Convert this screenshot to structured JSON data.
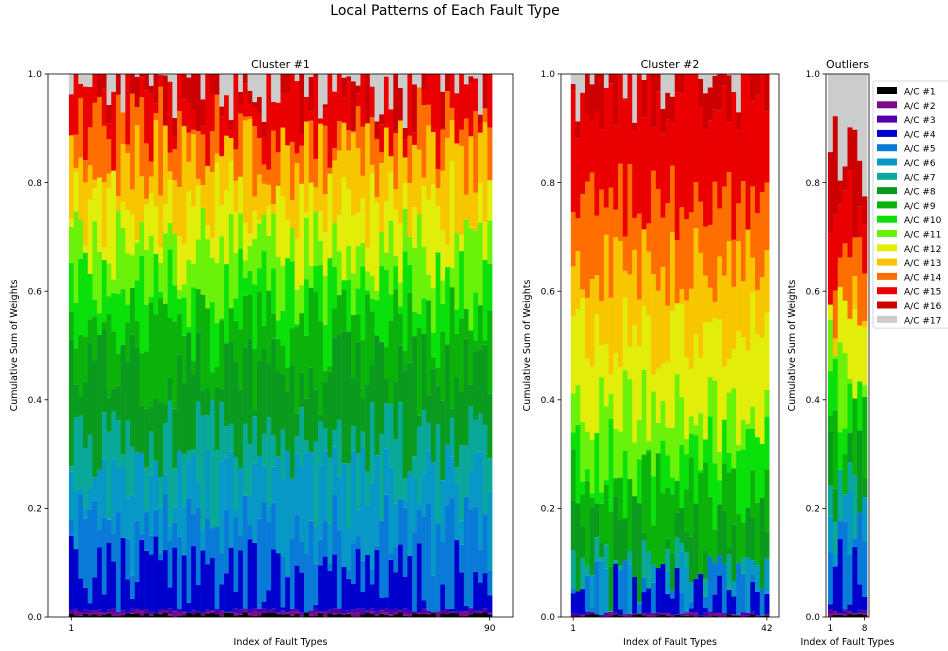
{
  "suptitle": "Local Patterns of Each Fault Type",
  "colors": [
    "#000000",
    "#7a0a87",
    "#5000aa",
    "#0000cc",
    "#0a7ad8",
    "#0898c8",
    "#09a899",
    "#0a9a1e",
    "#0ab20a",
    "#0ae00a",
    "#6af20a",
    "#e2ee0a",
    "#f8c600",
    "#ff6e00",
    "#ea0000",
    "#cc0000",
    "#cccccc"
  ],
  "legend": {
    "placement": "right",
    "entries": [
      "A/C #1",
      "A/C #2",
      "A/C #3",
      "A/C #4",
      "A/C #5",
      "A/C #6",
      "A/C #7",
      "A/C #8",
      "A/C #9",
      "A/C #10",
      "A/C #11",
      "A/C #12",
      "A/C #13",
      "A/C #14",
      "A/C #15",
      "A/C #16",
      "A/C #17"
    ]
  },
  "chart_data": [
    {
      "type": "bar",
      "stacked": true,
      "title": "Cluster #1",
      "xlabel": "Index of Fault Types",
      "ylabel": "Cumulative Sum of Weights",
      "n": 90,
      "xticks": [
        "1",
        "90"
      ],
      "ylim": [
        0,
        1
      ],
      "yticks": [
        "0.0",
        "0.2",
        "0.4",
        "0.6",
        "0.8",
        "1.0"
      ],
      "mean_cumulative_boundaries": [
        0.005,
        0.008,
        0.012,
        0.07,
        0.15,
        0.24,
        0.33,
        0.45,
        0.53,
        0.6,
        0.68,
        0.76,
        0.84,
        0.9,
        0.95,
        0.97,
        1.0
      ]
    },
    {
      "type": "bar",
      "stacked": true,
      "title": "Cluster #2",
      "xlabel": "Index of Fault Types",
      "ylabel": "Cumulative Sum of Weights",
      "n": 42,
      "xticks": [
        "1",
        "42"
      ],
      "ylim": [
        0,
        1
      ],
      "yticks": [
        "0.0",
        "0.2",
        "0.4",
        "0.6",
        "0.8",
        "1.0"
      ],
      "mean_cumulative_boundaries": [
        0.002,
        0.004,
        0.006,
        0.02,
        0.035,
        0.05,
        0.07,
        0.15,
        0.23,
        0.29,
        0.38,
        0.52,
        0.64,
        0.76,
        0.96,
        0.99,
        1.0
      ]
    },
    {
      "type": "bar",
      "stacked": true,
      "title": "Outliers",
      "xlabel": "Index of Fault Types",
      "ylabel": "Cumulative Sum of Weights",
      "n": 8,
      "xticks": [
        "1",
        "8"
      ],
      "ylim": [
        0,
        1
      ],
      "yticks": [
        "0.0",
        "0.2",
        "0.4",
        "0.6",
        "0.8",
        "1.0"
      ],
      "mean_cumulative_boundaries": [
        0.004,
        0.007,
        0.01,
        0.07,
        0.12,
        0.16,
        0.22,
        0.27,
        0.34,
        0.41,
        0.47,
        0.53,
        0.58,
        0.63,
        0.75,
        0.85,
        1.0
      ]
    }
  ]
}
